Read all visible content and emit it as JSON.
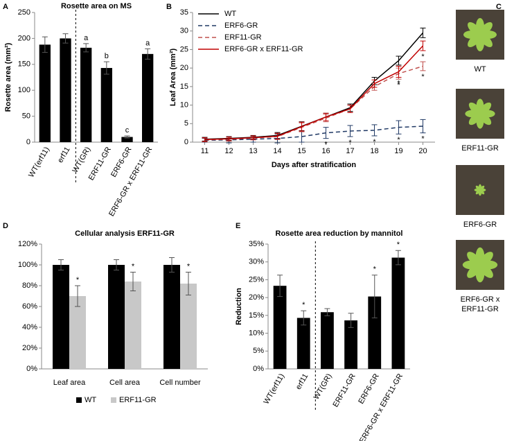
{
  "chart_data": [
    {
      "panel_label": "A",
      "type": "bar",
      "title": "Rosette area on MS",
      "ylabel": "Rosette area (mm²)",
      "categories": [
        "WT(erf11)",
        "erf11",
        "WT(GR)",
        "ERF11-GR",
        "ERF6-GR",
        "ERF6-GR x ERF11-GR"
      ],
      "values": [
        188,
        200,
        182,
        143,
        10,
        170
      ],
      "errors": [
        15,
        9,
        8,
        12,
        2,
        10
      ],
      "annotations": [
        null,
        null,
        "a",
        "b",
        "c",
        "a"
      ],
      "color": "#000000",
      "ylim": [
        0,
        250
      ],
      "yticks": [
        0,
        50,
        100,
        150,
        200,
        250
      ]
    },
    {
      "panel_label": "B",
      "type": "line",
      "xlabel": "Days after stratification",
      "ylabel": "Leaf Area (mm²)",
      "x": [
        11,
        12,
        13,
        14,
        15,
        16,
        17,
        18,
        19,
        20
      ],
      "series": [
        {
          "name": "WT",
          "color": "#000000",
          "dashed": false,
          "values": [
            0.8,
            1.0,
            1.3,
            1.8,
            4.3,
            6.8,
            9.3,
            16.5,
            22,
            29.5
          ],
          "errors": [
            0.5,
            0.5,
            0.5,
            0.8,
            1.2,
            1,
            1,
            1,
            1.2,
            1.3
          ],
          "annotations": [
            null,
            null,
            null,
            null,
            null,
            null,
            null,
            null,
            null,
            null
          ]
        },
        {
          "name": "ERF6-GR",
          "color": "#1f3864",
          "dashed": true,
          "values": [
            0.5,
            0.6,
            0.8,
            1.0,
            1.5,
            2.5,
            3,
            3.2,
            4,
            4.3
          ],
          "errors": [
            0.5,
            0.8,
            0.8,
            1.2,
            1.5,
            1.5,
            1.5,
            1.5,
            1.8,
            1.8
          ],
          "annotations": [
            null,
            null,
            null,
            null,
            null,
            "*",
            "*",
            "*",
            "*",
            "*"
          ]
        },
        {
          "name": "ERF11-GR",
          "color": "#c0504d",
          "dashed": true,
          "values": [
            0.6,
            0.8,
            1.1,
            1.5,
            4,
            6.5,
            9,
            15,
            18.5,
            20.5
          ],
          "errors": [
            0.5,
            0.5,
            0.5,
            0.8,
            1.2,
            1,
            1,
            1,
            1.5,
            1.2
          ],
          "annotations": [
            null,
            null,
            null,
            null,
            null,
            null,
            null,
            null,
            "*",
            "*"
          ]
        },
        {
          "name": "ERF6-GR x ERF11-GR",
          "color": "#c00000",
          "dashed": false,
          "values": [
            0.7,
            0.9,
            1.2,
            1.6,
            4.2,
            6.8,
            9,
            15.8,
            19,
            26
          ],
          "errors": [
            0.5,
            0.5,
            0.5,
            0.8,
            1.2,
            1,
            1,
            1,
            1.5,
            1.3
          ],
          "annotations": [
            null,
            null,
            null,
            null,
            null,
            null,
            null,
            null,
            "*",
            "*"
          ]
        }
      ],
      "xlim": [
        10.5,
        20.5
      ],
      "xticks": [
        11,
        12,
        13,
        14,
        15,
        16,
        17,
        18,
        19,
        20
      ],
      "ylim": [
        0,
        35
      ],
      "yticks": [
        0,
        5,
        10,
        15,
        20,
        25,
        30,
        35
      ],
      "legend": "top-left"
    },
    {
      "panel_label": "D",
      "type": "grouped_bar",
      "title": "Cellular analysis ERF11-GR",
      "categories": [
        "Leaf area",
        "Cell area",
        "Cell number"
      ],
      "series": [
        {
          "name": "WT",
          "color": "#000000",
          "values": [
            100,
            100,
            100
          ],
          "errors": [
            5,
            5,
            7
          ],
          "annotations": [
            null,
            null,
            null
          ]
        },
        {
          "name": "ERF11-GR",
          "color": "#c8c8c8",
          "values": [
            70,
            84,
            82
          ],
          "errors": [
            10,
            9,
            11
          ],
          "annotations": [
            "*",
            "*",
            "*"
          ]
        }
      ],
      "ylim": [
        0,
        120
      ],
      "yticks": [
        {
          "value": 0,
          "label": "0%"
        },
        {
          "value": 20,
          "label": "20%"
        },
        {
          "value": 40,
          "label": "40%"
        },
        {
          "value": 60,
          "label": "60%"
        },
        {
          "value": 80,
          "label": "80%"
        },
        {
          "value": 100,
          "label": "100%"
        },
        {
          "value": 120,
          "label": "120%"
        }
      ],
      "legend": "bottom"
    },
    {
      "panel_label": "E",
      "type": "bar",
      "title": "Rosette area reduction by mannitol",
      "ylabel": "Reduction",
      "categories": [
        "WT(erf11)",
        "erf11",
        "WT(GR)",
        "ERF11-GR",
        "ERF6-GR",
        "ERF6-GR x ERF11-GR"
      ],
      "values": [
        23.3,
        14.3,
        15.9,
        13.6,
        20.3,
        31.2
      ],
      "errors": [
        3,
        2,
        1,
        2,
        6,
        2
      ],
      "annotations": [
        null,
        "*",
        null,
        null,
        "*",
        "*"
      ],
      "color": "#000000",
      "ylim": [
        0,
        35
      ],
      "yticks": [
        {
          "value": 0,
          "label": "0%"
        },
        {
          "value": 5,
          "label": "5%"
        },
        {
          "value": 10,
          "label": "10%"
        },
        {
          "value": 15,
          "label": "15%"
        },
        {
          "value": 20,
          "label": "20%"
        },
        {
          "value": 25,
          "label": "25%"
        },
        {
          "value": 30,
          "label": "30%"
        },
        {
          "value": 35,
          "label": "35%"
        }
      ]
    }
  ],
  "photos": {
    "panel_label": "C",
    "captions": [
      [
        "WT"
      ],
      [
        "ERF11-GR"
      ],
      [
        "ERF6-GR"
      ],
      [
        "ERF6-GR x",
        "ERF11-GR"
      ]
    ]
  }
}
